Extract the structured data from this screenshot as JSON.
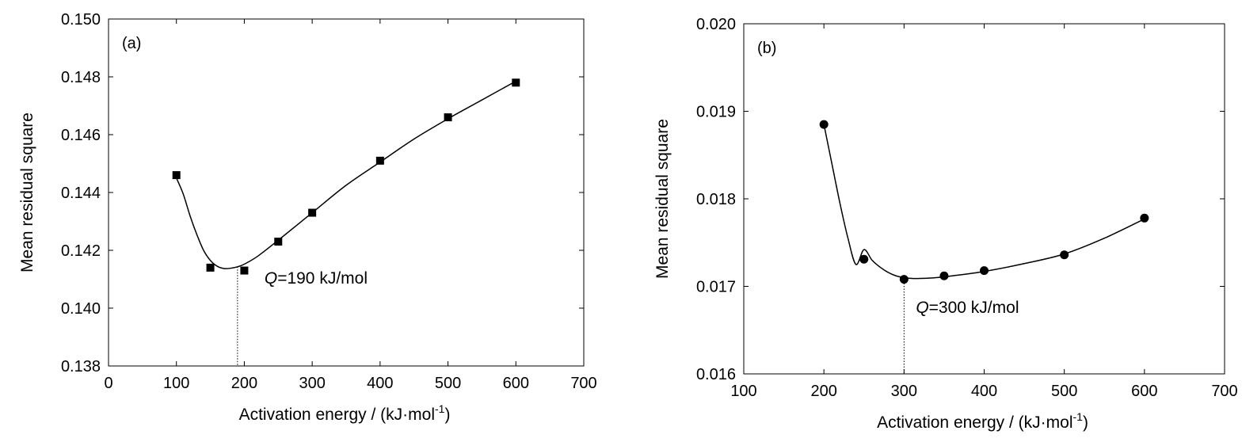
{
  "chart_data": [
    {
      "type": "scatter",
      "panel_label": "(a)",
      "xlabel": "Activation energy / (kJ·mol",
      "xlabel_sup": "-1",
      "xlabel_close": ")",
      "ylabel": "Mean residual square",
      "xlim": [
        0,
        700
      ],
      "ylim": [
        0.138,
        0.15
      ],
      "xticks": [
        0,
        100,
        200,
        300,
        400,
        500,
        600,
        700
      ],
      "xtick_labels": [
        "0",
        "100",
        "200",
        "300",
        "400",
        "500",
        "600",
        "700"
      ],
      "yticks": [
        0.138,
        0.14,
        0.142,
        0.144,
        0.146,
        0.148,
        0.15
      ],
      "ytick_labels": [
        "0.138",
        "0.140",
        "0.142",
        "0.144",
        "0.146",
        "0.148",
        "0.150"
      ],
      "marker": "square",
      "series": [
        {
          "x": [
            100,
            150,
            200,
            250,
            300,
            400,
            500,
            600
          ],
          "y": [
            0.1446,
            0.1414,
            0.1413,
            0.1423,
            0.1433,
            0.1451,
            0.1466,
            0.1478
          ]
        }
      ],
      "fit_curve": {
        "x": [
          100,
          110,
          120,
          130,
          140,
          150,
          160,
          170,
          180,
          190,
          200,
          220,
          250,
          300,
          350,
          400,
          450,
          500,
          550,
          600
        ],
        "y": [
          0.1445,
          0.14395,
          0.1432,
          0.14255,
          0.142,
          0.14165,
          0.14145,
          0.14137,
          0.14138,
          0.14143,
          0.14152,
          0.1418,
          0.14235,
          0.1433,
          0.14425,
          0.14505,
          0.14585,
          0.14655,
          0.1472,
          0.14785
        ]
      },
      "annotation": {
        "prefix": "Q",
        "text": "=190 kJ/mol",
        "x": 190,
        "y_line_top": 0.14143
      },
      "grid": false
    },
    {
      "type": "scatter",
      "panel_label": "(b)",
      "xlabel": "Activation energy / (kJ·mol",
      "xlabel_sup": "-1",
      "xlabel_close": ")",
      "ylabel": "Mean residual square",
      "xlim": [
        100,
        700
      ],
      "ylim": [
        0.016,
        0.02
      ],
      "xticks": [
        100,
        200,
        300,
        400,
        500,
        600,
        700
      ],
      "xtick_labels": [
        "100",
        "200",
        "300",
        "400",
        "500",
        "600",
        "700"
      ],
      "yticks": [
        0.016,
        0.017,
        0.018,
        0.019,
        0.02
      ],
      "ytick_labels": [
        "0.016",
        "0.017",
        "0.018",
        "0.019",
        "0.020"
      ],
      "marker": "circle",
      "series": [
        {
          "x": [
            200,
            250,
            300,
            350,
            400,
            500,
            600
          ],
          "y": [
            0.01885,
            0.01731,
            0.01708,
            0.01712,
            0.01718,
            0.01736,
            0.01778
          ]
        }
      ],
      "fit_curve": {
        "x": [
          200,
          210,
          220,
          230,
          240,
          250,
          260,
          270,
          280,
          290,
          300,
          310,
          320,
          340,
          360,
          400,
          450,
          500,
          550,
          600
        ],
        "y": [
          0.01885,
          0.0184,
          0.01795,
          0.01755,
          0.01725,
          0.01742,
          0.0173,
          0.01722,
          0.01716,
          0.01712,
          0.0171,
          0.01709,
          0.01709,
          0.0171,
          0.01712,
          0.01717,
          0.01726,
          0.01737,
          0.01755,
          0.01777
        ]
      },
      "annotation": {
        "prefix": "Q",
        "text": "=300 kJ/mol",
        "x": 300,
        "y_line_top": 0.0171
      },
      "grid": false
    }
  ]
}
